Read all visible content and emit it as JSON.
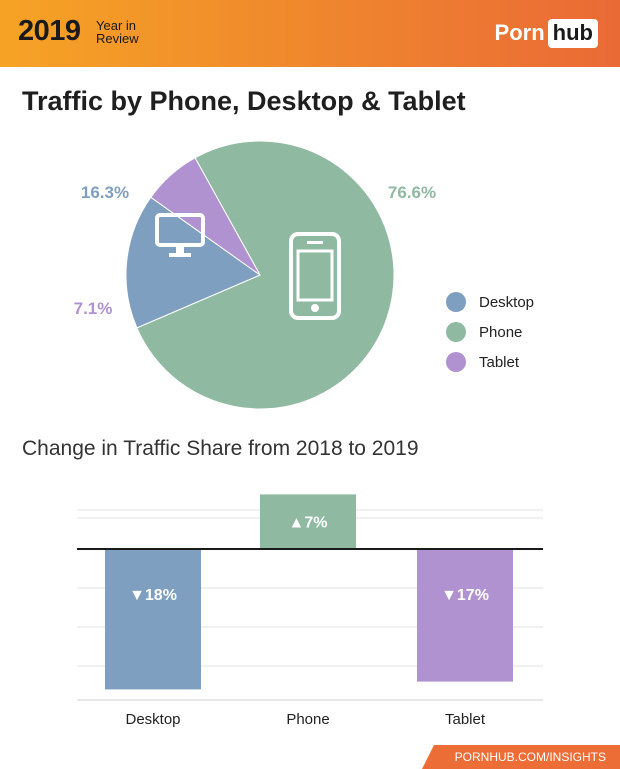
{
  "header": {
    "year": "2019",
    "year_in_review": "Year in Review",
    "logo_part1": "Porn",
    "logo_part2": "hub"
  },
  "footer": {
    "url": "PORNHUB.COM/INSIGHTS"
  },
  "colors": {
    "desktop": "#7f9fc0",
    "phone": "#8fbaa1",
    "tablet": "#b092d0"
  },
  "chart_data": [
    {
      "type": "pie",
      "title": "Traffic by Phone, Desktop & Tablet",
      "slices": [
        {
          "name": "Phone",
          "value": 76.6,
          "label": "76.6%",
          "icon": "smartphone-icon"
        },
        {
          "name": "Desktop",
          "value": 16.3,
          "label": "16.3%",
          "icon": "monitor-icon"
        },
        {
          "name": "Tablet",
          "value": 7.1,
          "label": "7.1%",
          "icon": ""
        }
      ],
      "legend": [
        "Desktop",
        "Phone",
        "Tablet"
      ],
      "legend_position": "right"
    },
    {
      "type": "bar",
      "title": "Change in Traffic Share from 2018 to 2019",
      "categories": [
        "Desktop",
        "Phone",
        "Tablet"
      ],
      "values": [
        -18,
        7,
        -17
      ],
      "data_labels": [
        "▼18%",
        "▲7%",
        "▼17%"
      ],
      "ylim": [
        -25,
        10
      ],
      "grid": true
    }
  ]
}
